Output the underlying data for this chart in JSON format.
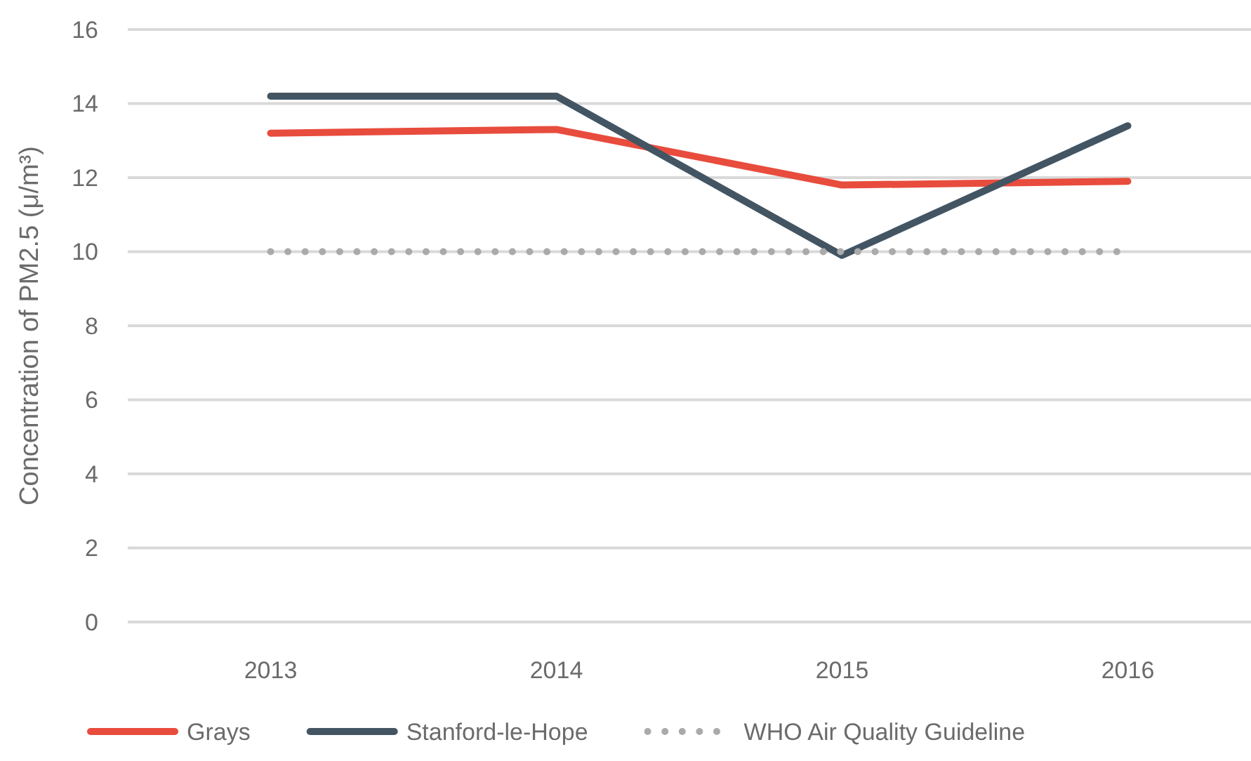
{
  "chart_data": {
    "type": "line",
    "ylabel": "Concentration of PM2.5 (μ/m³)",
    "categories": [
      "2013",
      "2014",
      "2015",
      "2016"
    ],
    "series": [
      {
        "name": "Grays",
        "color": "#e84c3d",
        "values": [
          13.2,
          13.3,
          11.8,
          11.9
        ]
      },
      {
        "name": "Stanford-le-Hope",
        "color": "#435563",
        "values": [
          14.2,
          14.2,
          9.9,
          13.4
        ]
      },
      {
        "name": "WHO Air Quality Guideline",
        "color": "#aaaaaa",
        "values": [
          10,
          10,
          10,
          10
        ],
        "line_style": "dotted"
      }
    ],
    "ylim": [
      0,
      16
    ],
    "yticks": [
      0,
      2,
      4,
      6,
      8,
      10,
      12,
      14,
      16
    ],
    "grid": "y",
    "legend": "bottom",
    "line_style": "solid"
  }
}
